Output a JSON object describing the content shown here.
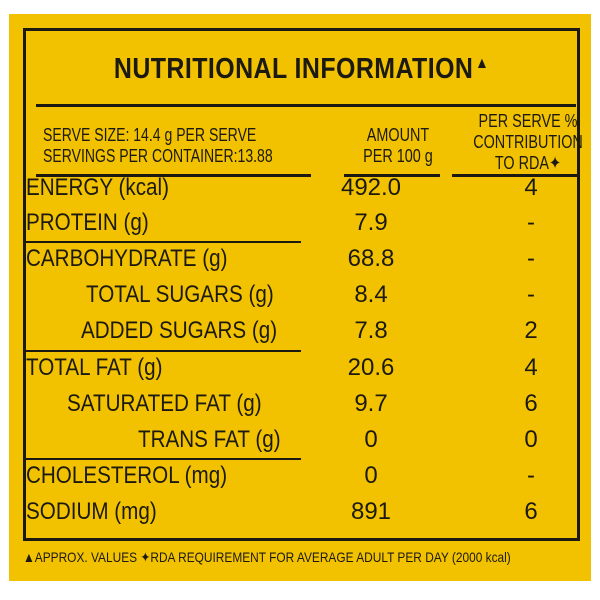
{
  "label": {
    "title": "NUTRITIONAL INFORMATION",
    "title_mark": "▲",
    "header": {
      "serve_size": "SERVE SIZE: 14.4 g PER SERVE",
      "servings": "SERVINGS PER CONTAINER:13.88",
      "amount_line1": "AMOUNT",
      "amount_line2": "PER 100 g",
      "rda_line1": "PER SERVE %",
      "rda_line2": "CONTRIBUTION",
      "rda_line3": "TO RDA✦"
    },
    "rows": [
      {
        "name": "ENERGY (kcal)",
        "amount": "492.0",
        "rda": "4"
      },
      {
        "name": "PROTEIN (g)",
        "amount": "7.9",
        "rda": "-"
      },
      {
        "name": "CARBOHYDRATE (g)",
        "amount": "68.8",
        "rda": "-"
      },
      {
        "name": "TOTAL SUGARS (g)",
        "amount": "8.4",
        "rda": "-"
      },
      {
        "name": "ADDED SUGARS (g)",
        "amount": "7.8",
        "rda": "2"
      },
      {
        "name": "TOTAL FAT (g)",
        "amount": "20.6",
        "rda": "4"
      },
      {
        "name": "SATURATED FAT (g)",
        "amount": "9.7",
        "rda": "6"
      },
      {
        "name": "TRANS FAT (g)",
        "amount": "0",
        "rda": "0"
      },
      {
        "name": "CHOLESTEROL (mg)",
        "amount": "0",
        "rda": "-"
      },
      {
        "name": "SODIUM (mg)",
        "amount": "891",
        "rda": "6"
      }
    ],
    "footnote": "▲APPROX. VALUES ✦RDA REQUIREMENT FOR AVERAGE ADULT PER DAY (2000 kcal)"
  },
  "colors": {
    "background": "#f2c200",
    "ink": "#1c1a10"
  }
}
